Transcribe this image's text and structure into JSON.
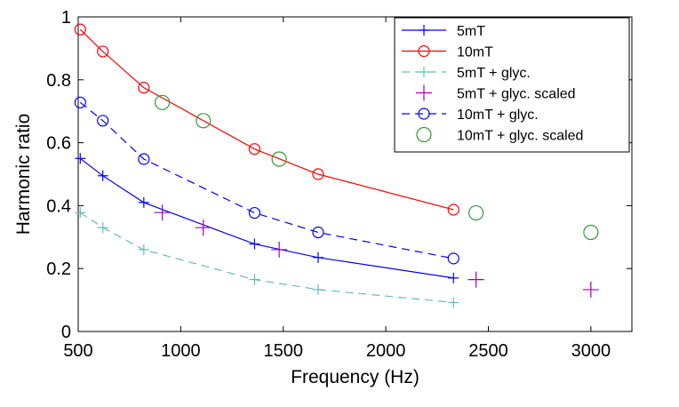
{
  "chart_data": {
    "type": "line",
    "title": "",
    "xlabel": "Frequency (Hz)",
    "ylabel": "Harmonic ratio",
    "xlim": [
      500,
      3200
    ],
    "ylim": [
      0,
      1
    ],
    "xticks": [
      500,
      1000,
      1500,
      2000,
      2500,
      3000
    ],
    "xtick_labels": [
      "500",
      "1000",
      "1500",
      "2000",
      "2500",
      "3000"
    ],
    "yticks": [
      0,
      0.2,
      0.4,
      0.6,
      0.8,
      1
    ],
    "ytick_labels": [
      "0",
      "0.2",
      "0.4",
      "0.6",
      "0.8",
      "1"
    ],
    "grid": false,
    "legend_position": "top-right",
    "series": [
      {
        "name": "5mT",
        "color": "#0000ff",
        "line": "solid",
        "marker": "plus",
        "x": [
          510,
          620,
          820,
          1360,
          1670,
          2330
        ],
        "y": [
          0.55,
          0.495,
          0.41,
          0.278,
          0.235,
          0.17
        ]
      },
      {
        "name": "10mT",
        "color": "#ff0000",
        "line": "solid",
        "marker": "circle",
        "x": [
          510,
          620,
          820,
          1360,
          1670,
          2330
        ],
        "y": [
          0.96,
          0.89,
          0.775,
          0.58,
          0.5,
          0.387
        ]
      },
      {
        "name": "5mT + glyc.",
        "color": "#66bbbb",
        "line": "dashed",
        "marker": "plus",
        "x": [
          510,
          620,
          820,
          1360,
          1670,
          2330
        ],
        "y": [
          0.378,
          0.33,
          0.26,
          0.165,
          0.133,
          0.092
        ]
      },
      {
        "name": "5mT + glyc. scaled",
        "color": "#aa00aa",
        "line": "none",
        "marker": "plus",
        "x": [
          910,
          1110,
          1480,
          2440,
          3000
        ],
        "y": [
          0.378,
          0.33,
          0.26,
          0.165,
          0.133
        ]
      },
      {
        "name": "10mT + glyc.",
        "color": "#0000ff",
        "line": "dashed",
        "marker": "circle",
        "x": [
          510,
          620,
          820,
          1360,
          1670,
          2330
        ],
        "y": [
          0.728,
          0.67,
          0.548,
          0.377,
          0.315,
          0.232
        ]
      },
      {
        "name": "10mT + glyc. scaled",
        "color": "#339933",
        "line": "none",
        "marker": "circle",
        "x": [
          910,
          1110,
          1480,
          2440,
          3000
        ],
        "y": [
          0.728,
          0.67,
          0.548,
          0.377,
          0.315
        ]
      }
    ]
  }
}
